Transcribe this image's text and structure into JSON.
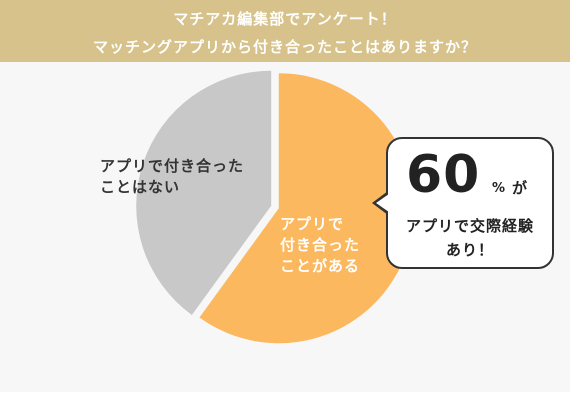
{
  "header": {
    "line1": "マチアカ編集部でアンケート！",
    "line2": "マッチングアプリから付き合ったことはありますか？"
  },
  "chart_data": {
    "type": "pie",
    "categories": [
      "アプリで付き合ったことがある",
      "アプリで付き合ったことはない"
    ],
    "values": [
      60,
      40
    ],
    "colors": [
      "#fbb85f",
      "#c8c8c8"
    ],
    "labels": [
      [
        "アプリで",
        "付き合った",
        "ことがある"
      ],
      [
        "アプリで付き合った",
        "ことはない"
      ]
    ]
  },
  "callout": {
    "percent": "60",
    "percent_unit": "%",
    "suffix": "が",
    "line1": "アプリで交際経験",
    "line2": "あり！"
  }
}
